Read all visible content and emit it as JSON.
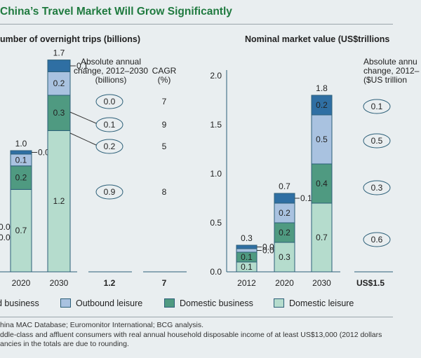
{
  "title": "China’s Travel Market Will Grow Significantly",
  "colors": {
    "outbound_business": "#2f6fa3",
    "outbound_leisure": "#a9c2e0",
    "domestic_business": "#4f9a81",
    "domestic_leisure": "#b5dccd",
    "accent": "#1f7a3f"
  },
  "legend": [
    {
      "label": "d business",
      "color": "#2f6fa3"
    },
    {
      "label": "Outbound leisure",
      "color": "#a9c2e0"
    },
    {
      "label": "Domestic business",
      "color": "#4f9a81"
    },
    {
      "label": "Domestic leisure",
      "color": "#b5dccd"
    }
  ],
  "notes": [
    "hina MAC Database; Euromonitor International; BCG analysis.",
    "ddle-class and affluent consumers with real annual household disposable income of at least US$13,000 (2012 dollars",
    "ancies in the totals are due to rounding."
  ],
  "chart_data": [
    {
      "type": "bar",
      "stacked": true,
      "title": "umber of overnight trips (billions)",
      "categories": [
        "2020",
        "2030"
      ],
      "series": [
        {
          "name": "Domestic leisure",
          "values": [
            0.7,
            1.2
          ]
        },
        {
          "name": "Domestic business",
          "values": [
            0.2,
            0.3
          ]
        },
        {
          "name": "Outbound leisure",
          "values": [
            0.1,
            0.2
          ]
        },
        {
          "name": "Outbound business",
          "values": [
            0.0,
            0.1
          ]
        }
      ],
      "totals": [
        "1.0",
        "1.7"
      ],
      "partial_labels_left": [
        "0.0",
        "0.0"
      ],
      "change_header": [
        "Absolute annual",
        "change, 2012–2030",
        "(billions)"
      ],
      "cagr_header": [
        "CAGR",
        "(%)"
      ],
      "changes": [
        {
          "segment": "Outbound business",
          "change": "0.0",
          "cagr": "7"
        },
        {
          "segment": "Outbound leisure",
          "change": "0.1",
          "cagr": "9"
        },
        {
          "segment": "Domestic business",
          "change": "0.2",
          "cagr": "5"
        },
        {
          "segment": "Domestic leisure",
          "change": "0.9",
          "cagr": "8"
        }
      ],
      "change_total": "1.2",
      "cagr_total": "7"
    },
    {
      "type": "bar",
      "stacked": true,
      "title": "Nominal market value (US$trillions",
      "categories": [
        "2012",
        "2020",
        "2030"
      ],
      "yticks": [
        "0.0",
        "0.5",
        "1.0",
        "1.5",
        "2.0"
      ],
      "ylim": [
        0,
        2.0
      ],
      "series": [
        {
          "name": "Domestic leisure",
          "values": [
            0.1,
            0.3,
            0.7
          ]
        },
        {
          "name": "Domestic business",
          "values": [
            0.1,
            0.2,
            0.4
          ]
        },
        {
          "name": "Outbound leisure",
          "values": [
            0.0,
            0.2,
            0.5
          ]
        },
        {
          "name": "Outbound business",
          "values": [
            0.0,
            0.1,
            0.2
          ]
        }
      ],
      "totals": [
        "0.3",
        "0.7",
        "1.8"
      ],
      "change_header": [
        "Absolute annu",
        "change, 2012–",
        "($US trillion"
      ],
      "changes": [
        {
          "segment": "Outbound business",
          "change": "0.1"
        },
        {
          "segment": "Outbound leisure",
          "change": "0.5"
        },
        {
          "segment": "Domestic business",
          "change": "0.3"
        },
        {
          "segment": "Domestic leisure",
          "change": "0.6"
        }
      ],
      "change_total": "US$1.5"
    }
  ]
}
